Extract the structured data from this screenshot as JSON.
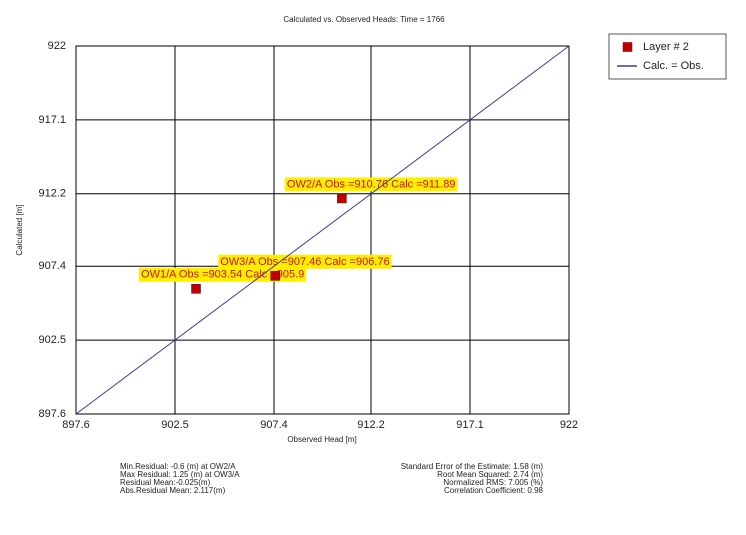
{
  "chart_data": {
    "type": "scatter",
    "title": "Calculated vs. Observed Heads: Time = 1766",
    "x_label": "Observed Head [m]",
    "y_label": "Calculated [m]",
    "xlim": [
      897.6,
      922
    ],
    "ylim": [
      897.6,
      922
    ],
    "xticks": [
      897.6,
      902.5,
      907.4,
      912.2,
      917.1,
      922
    ],
    "yticks": [
      897.6,
      902.5,
      907.4,
      912.2,
      917.1,
      922
    ],
    "grid": true,
    "legend": "outside-right",
    "series": [
      {
        "name": "Layer # 2",
        "color": "#c00000",
        "type": "scatter",
        "x": [
          903.54,
          907.46,
          910.76
        ],
        "values": [
          905.9,
          906.76,
          911.89
        ],
        "point_labels": [
          "OW1/A Obs =903.54 Calc =905.9",
          "OW3/A Obs =907.46 Calc =906.76",
          "OW2/A Obs =910.76 Calc =911.89"
        ]
      },
      {
        "name": "Calc. = Obs.",
        "color": "#3c3c9c",
        "type": "line",
        "x": [
          897.6,
          922
        ],
        "values": [
          897.6,
          922
        ]
      }
    ],
    "statistics": {
      "left": [
        "Min.Residual: -0.6 (m) at OW2/A",
        "Max Residual: 1.25 (m) at OW3/A",
        "Residual Mean:-0.025(m)",
        "Abs.Residual Mean: 2.117(m)"
      ],
      "right": [
        "Standard Error of the Estimate: 1.58 (m)",
        "Root Mean Squared: 2.74 (m)",
        "Normalized RMS: 7.005 (%)",
        "Correlation Coefficient: 0.98"
      ]
    }
  }
}
